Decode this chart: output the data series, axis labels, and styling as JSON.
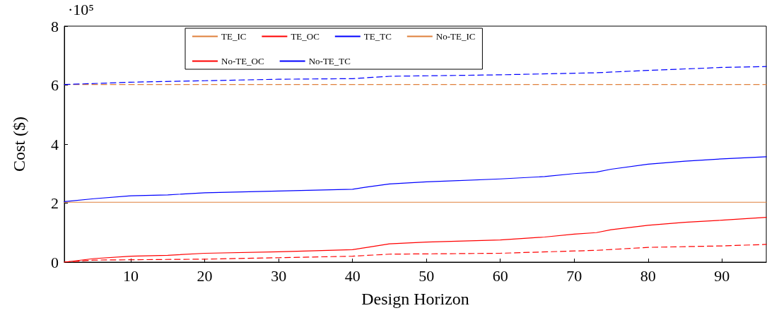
{
  "chart_data": {
    "type": "line",
    "xlabel": "Design Horizon",
    "ylabel": "Cost ($)",
    "annotations": [
      "·10⁵"
    ],
    "xlim": [
      1,
      96
    ],
    "xticks": [
      10,
      20,
      30,
      40,
      50,
      60,
      70,
      80,
      90
    ],
    "ylim": [
      0,
      8
    ],
    "yticks": [
      0,
      2,
      4,
      6,
      8
    ],
    "grid": false,
    "legend": "top left",
    "marker": "none",
    "series": [
      {
        "name": "TE_IC",
        "color": "#e0803c",
        "line_style": "solid",
        "x": [
          1,
          96
        ],
        "values": [
          2.03,
          2.03
        ]
      },
      {
        "name": "TE_OC",
        "color": "#ff0000",
        "line_style": "solid",
        "x": [
          1,
          5,
          10,
          15,
          20,
          30,
          40,
          42,
          45,
          50,
          60,
          66,
          70,
          73,
          75,
          80,
          85,
          90,
          96
        ],
        "values": [
          0,
          0.12,
          0.2,
          0.23,
          0.3,
          0.35,
          0.42,
          0.5,
          0.62,
          0.68,
          0.75,
          0.85,
          0.95,
          1.0,
          1.1,
          1.25,
          1.35,
          1.42,
          1.52
        ]
      },
      {
        "name": "TE_TC",
        "color": "#0000ff",
        "line_style": "solid",
        "x": [
          1,
          5,
          10,
          15,
          20,
          30,
          40,
          42,
          45,
          50,
          60,
          66,
          70,
          73,
          75,
          80,
          85,
          90,
          96
        ],
        "values": [
          2.05,
          2.15,
          2.25,
          2.28,
          2.35,
          2.41,
          2.47,
          2.55,
          2.65,
          2.72,
          2.82,
          2.9,
          3.0,
          3.05,
          3.15,
          3.32,
          3.42,
          3.5,
          3.57
        ]
      },
      {
        "name": "No-TE_IC",
        "color": "#e0803c",
        "line_style": "dashed",
        "x": [
          1,
          96
        ],
        "values": [
          6.02,
          6.02
        ]
      },
      {
        "name": "No-TE_OC",
        "color": "#ff0000",
        "line_style": "dashed",
        "x": [
          1,
          5,
          20,
          30,
          40,
          45,
          60,
          73,
          80,
          90,
          96
        ],
        "values": [
          0,
          0.07,
          0.1,
          0.15,
          0.2,
          0.27,
          0.3,
          0.4,
          0.5,
          0.55,
          0.6
        ]
      },
      {
        "name": "No-TE_TC",
        "color": "#0000ff",
        "line_style": "dashed",
        "x": [
          1,
          10,
          20,
          30,
          40,
          45,
          60,
          73,
          80,
          90,
          96
        ],
        "values": [
          6.02,
          6.1,
          6.15,
          6.2,
          6.22,
          6.3,
          6.35,
          6.42,
          6.5,
          6.6,
          6.63
        ]
      }
    ]
  }
}
